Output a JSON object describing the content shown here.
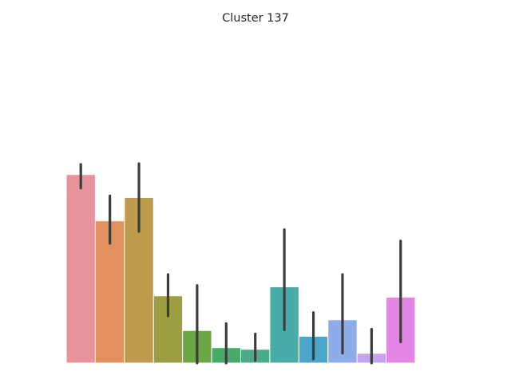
{
  "chart_data": {
    "type": "bar",
    "title": "Cluster 137",
    "xlabel": "",
    "ylabel": "",
    "grid": false,
    "legend": "none",
    "ylim": [
      0,
      1
    ],
    "categories": [
      "",
      "",
      "",
      "",
      "",
      "",
      "",
      "",
      "",
      "",
      "",
      ""
    ],
    "values": [
      0.945,
      0.713,
      0.83,
      0.337,
      0.163,
      0.077,
      0.069,
      0.382,
      0.134,
      0.217,
      0.049,
      0.33
    ],
    "error_low": [
      0.877,
      0.6,
      0.66,
      0.236,
      0.0,
      0.0,
      0.013,
      0.166,
      0.02,
      0.049,
      0.0,
      0.106
    ],
    "error_high": [
      0.996,
      0.838,
      1.0,
      0.444,
      0.389,
      0.198,
      0.146,
      0.669,
      0.253,
      0.444,
      0.17,
      0.612
    ],
    "colors": [
      "#e8939c",
      "#e2905e",
      "#be9b4c",
      "#9c9e42",
      "#6da744",
      "#48ab6b",
      "#4aab8c",
      "#48ada8",
      "#4aa7c7",
      "#8dadea",
      "#c5a4ed",
      "#e285e3"
    ]
  }
}
